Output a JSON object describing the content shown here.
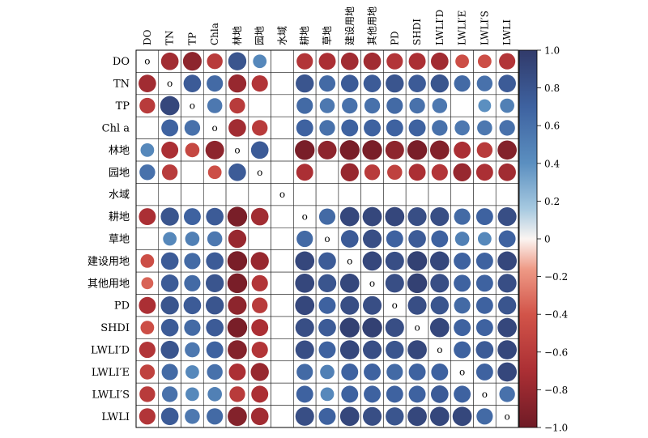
{
  "chart_data": {
    "type": "heatmap",
    "title": "",
    "xlabel": "",
    "ylabel": "",
    "columns": [
      "DO",
      "TN",
      "TP",
      "Chla",
      "林地",
      "园地",
      "水域",
      "耕地",
      "草地",
      "建设用地",
      "其他用地",
      "PD",
      "SHDI",
      "LWLI′D",
      "LWLI′E",
      "LWLI′S",
      "LWLI"
    ],
    "rows": [
      "DO",
      "TN",
      "TP",
      "Chl a",
      "林地",
      "园地",
      "水域",
      "耕地",
      "草地",
      "建设用地",
      "其他用地",
      "PD",
      "SHDI",
      "LWLI′D",
      "LWLI′E",
      "LWLI′S",
      "LWLI"
    ],
    "diagonal_marker": "o",
    "values": [
      [
        1,
        -0.75,
        -0.85,
        -0.6,
        0.8,
        0.45,
        null,
        -0.65,
        -0.7,
        -0.75,
        -0.75,
        -0.65,
        -0.7,
        -0.75,
        -0.45,
        -0.45,
        -0.65
      ],
      [
        -0.75,
        1,
        0.75,
        0.65,
        -0.8,
        -0.65,
        null,
        0.8,
        0.65,
        0.75,
        0.75,
        0.8,
        0.75,
        0.8,
        0.65,
        0.6,
        0.75
      ],
      [
        -0.6,
        0.9,
        1,
        0.55,
        -0.6,
        null,
        null,
        0.65,
        0.55,
        0.6,
        0.6,
        0.65,
        0.6,
        0.55,
        null,
        0.4,
        0.5
      ],
      [
        null,
        0.7,
        0.6,
        1,
        -0.75,
        -0.6,
        null,
        0.7,
        0.6,
        0.7,
        0.7,
        0.7,
        0.7,
        0.6,
        0.55,
        0.55,
        0.6
      ],
      [
        0.45,
        -0.7,
        -0.5,
        -0.85,
        1,
        0.75,
        null,
        -0.95,
        -0.85,
        -0.95,
        -0.95,
        -0.85,
        -0.95,
        -0.9,
        -0.7,
        -0.6,
        -0.9
      ],
      [
        0.6,
        -0.6,
        null,
        -0.45,
        0.75,
        1,
        null,
        -0.7,
        null,
        -0.8,
        -0.6,
        -0.55,
        -0.7,
        -0.65,
        -0.8,
        -0.7,
        -0.75
      ],
      [
        null,
        null,
        null,
        null,
        null,
        null,
        1,
        null,
        null,
        null,
        null,
        null,
        null,
        null,
        null,
        null,
        null
      ],
      [
        -0.7,
        0.8,
        0.7,
        0.75,
        -0.95,
        -0.75,
        null,
        1,
        0.65,
        0.9,
        0.9,
        0.9,
        0.85,
        0.85,
        0.65,
        0.7,
        0.85
      ],
      [
        null,
        0.45,
        0.5,
        0.55,
        -0.8,
        null,
        null,
        0.65,
        1,
        0.75,
        0.85,
        0.7,
        0.75,
        0.7,
        0.5,
        0.45,
        0.7
      ],
      [
        -0.45,
        0.75,
        0.65,
        0.75,
        -0.95,
        -0.8,
        null,
        0.9,
        0.75,
        1,
        0.9,
        0.85,
        0.95,
        0.9,
        0.7,
        0.7,
        0.9
      ],
      [
        -0.35,
        0.75,
        0.65,
        0.8,
        -0.95,
        -0.65,
        null,
        0.9,
        0.8,
        0.9,
        1,
        0.85,
        0.95,
        0.85,
        0.7,
        0.7,
        0.85
      ],
      [
        -0.7,
        0.8,
        0.75,
        0.8,
        -0.85,
        -0.6,
        null,
        0.9,
        0.7,
        0.85,
        0.85,
        1,
        0.85,
        0.8,
        0.65,
        0.7,
        0.8
      ],
      [
        -0.45,
        0.75,
        0.65,
        0.75,
        -0.95,
        -0.7,
        null,
        0.85,
        0.75,
        0.95,
        0.95,
        0.85,
        1,
        0.9,
        0.7,
        0.7,
        0.9
      ],
      [
        -0.65,
        0.8,
        0.55,
        0.7,
        -0.9,
        -0.65,
        null,
        0.85,
        0.7,
        0.9,
        0.85,
        0.8,
        0.9,
        1,
        0.7,
        0.75,
        0.9
      ],
      [
        -0.55,
        0.65,
        0.45,
        0.6,
        -0.7,
        -0.8,
        null,
        0.65,
        0.5,
        0.7,
        0.7,
        0.65,
        0.7,
        0.7,
        1,
        0.7,
        0.9
      ],
      [
        -0.6,
        0.6,
        0.45,
        0.5,
        -0.6,
        -0.7,
        null,
        0.7,
        0.45,
        0.7,
        0.7,
        0.7,
        0.7,
        0.75,
        0.7,
        1,
        0.6
      ],
      [
        -0.65,
        0.75,
        0.55,
        0.65,
        -0.9,
        -0.75,
        null,
        0.85,
        0.7,
        0.9,
        0.85,
        0.8,
        0.9,
        0.9,
        0.9,
        0.65,
        1
      ]
    ],
    "colorbar": {
      "range": [
        -1.0,
        1.0
      ],
      "ticks": [
        1.0,
        0.8,
        0.6,
        0.4,
        0.2,
        0,
        -0.2,
        -0.4,
        -0.6,
        -0.8,
        -1.0
      ],
      "tick_labels": [
        "1.0",
        "0.8",
        "0.6",
        "0.4",
        "0.2",
        "0",
        "−0.2",
        "−0.4",
        "−0.6",
        "−0.8",
        "−1.0"
      ]
    },
    "colors": {
      "positive_strong": "#313a6a",
      "positive_mid": "#4f7eb4",
      "positive_light": "#9fc4de",
      "neutral": "#fbf5f2",
      "negative_light": "#ee9a86",
      "negative_mid": "#c83c3c",
      "negative_strong": "#6f1b26"
    }
  }
}
